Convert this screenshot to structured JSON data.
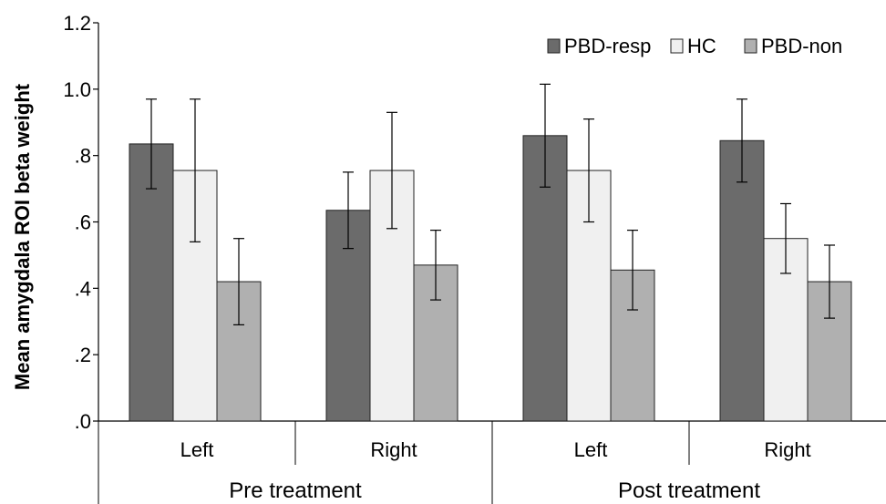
{
  "chart_data": {
    "type": "bar",
    "title": "",
    "ylabel": "Mean amygdala ROI beta weight",
    "xlabel": "",
    "ylim": [
      0,
      1.2
    ],
    "y_ticks": [
      0,
      0.2,
      0.4,
      0.6,
      0.8,
      1.0,
      1.2
    ],
    "y_tick_labels": [
      ".0",
      ".2",
      ".4",
      ".6",
      ".8",
      "1.0",
      "1.2"
    ],
    "grid": false,
    "legend_position": "top-right",
    "groups": [
      {
        "label": "Pre treatment",
        "categories": [
          "Left",
          "Right"
        ]
      },
      {
        "label": "Post treatment",
        "categories": [
          "Left",
          "Right"
        ]
      }
    ],
    "categories": [
      "Left",
      "Right",
      "Left",
      "Right"
    ],
    "series": [
      {
        "name": "PBD-resp",
        "color": "#6b6b6b",
        "values": [
          0.835,
          0.635,
          0.86,
          0.845
        ],
        "errors": [
          0.135,
          0.115,
          0.155,
          0.125
        ]
      },
      {
        "name": "HC",
        "color": "#f0f0f0",
        "values": [
          0.755,
          0.755,
          0.755,
          0.55
        ],
        "errors": [
          0.215,
          0.175,
          0.155,
          0.105
        ]
      },
      {
        "name": "PBD-non",
        "color": "#b0b0b0",
        "values": [
          0.42,
          0.47,
          0.455,
          0.42
        ],
        "errors": [
          0.13,
          0.105,
          0.12,
          0.11
        ]
      }
    ]
  }
}
